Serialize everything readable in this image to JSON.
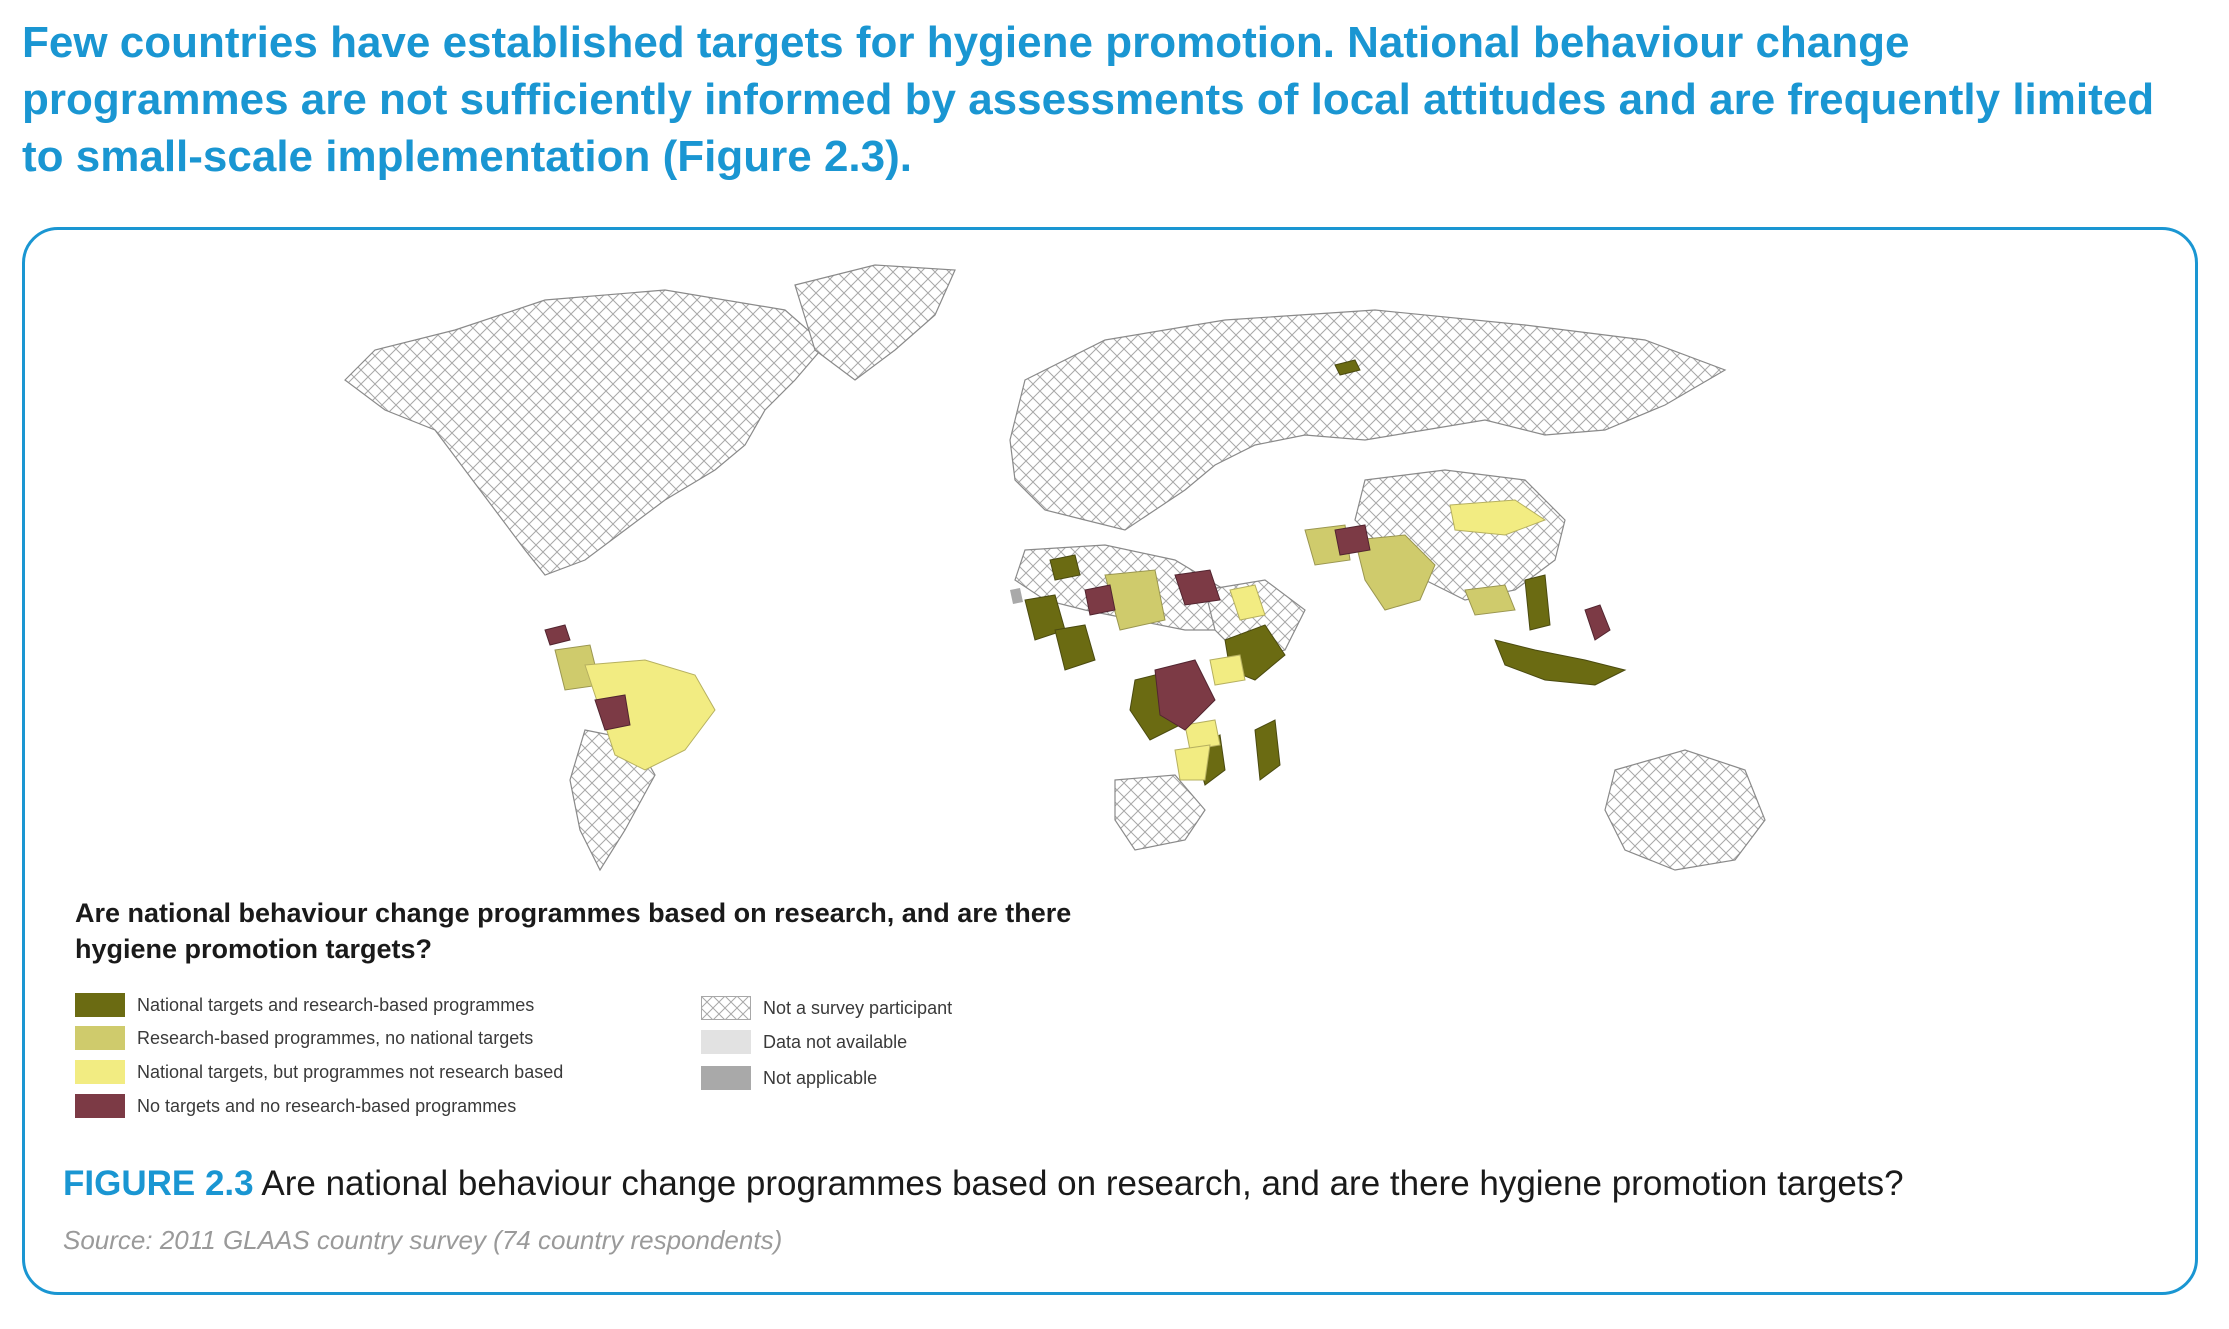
{
  "intro_text": "Few countries have established targets for hygiene promotion. National behaviour change programmes are not sufficiently informed by assessments of local attitudes and are frequently limited to small-scale implementation (Figure 2.3).",
  "map": {
    "projection": "world-robinson",
    "colors": {
      "national_targets_and_research": "#6b6b12",
      "research_no_targets": "#cfcb6c",
      "targets_not_research": "#f2ec82",
      "no_targets_no_research": "#7c3a45",
      "not_participant_fill": "#ffffff",
      "not_participant_hatch": "#a8a8a8",
      "data_not_available": "#e2e2e2",
      "not_applicable": "#a9a9a9"
    }
  },
  "legend": {
    "title": "Are national behaviour change programmes based on research, and are there hygiene promotion targets?",
    "items": [
      {
        "label": "National targets and research-based programmes",
        "color": "#6b6b12"
      },
      {
        "label": "Research-based programmes, no national targets",
        "color": "#cfcb6c"
      },
      {
        "label": "National targets, but programmes not research based",
        "color": "#f2ec82"
      },
      {
        "label": "No targets and no research-based programmes",
        "color": "#7c3a45"
      },
      {
        "label": "Not a survey participant",
        "color": "hatch"
      },
      {
        "label": "Data not available",
        "color": "#e2e2e2"
      },
      {
        "label": "Not applicable",
        "color": "#a9a9a9"
      }
    ]
  },
  "caption": {
    "label": "FIGURE 2.3",
    "text": " Are national behaviour change programmes based on research, and are there hygiene promotion targets?"
  },
  "source": "Source: 2011 GLAAS country survey (74 country respondents)"
}
